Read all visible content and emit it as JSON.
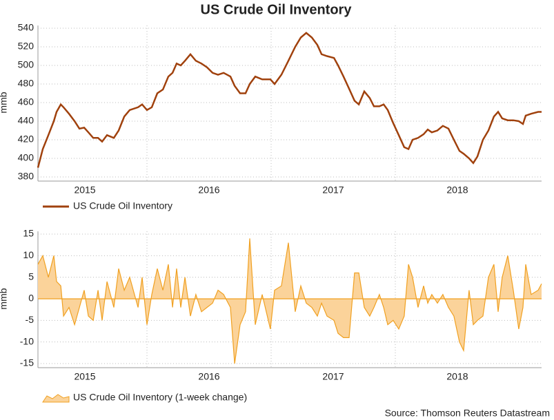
{
  "title": "US Crude Oil Inventory",
  "source": "Source: Thomson Reuters Datastream",
  "chart_data": [
    {
      "type": "line",
      "ylabel": "mmb",
      "x": [
        2015.122,
        2015.161,
        2015.206,
        2015.25,
        2015.272,
        2015.306,
        2015.328,
        2015.372,
        2015.417,
        2015.456,
        2015.494,
        2015.528,
        2015.567,
        2015.606,
        2015.639,
        2015.678,
        2015.733,
        2015.772,
        2015.817,
        2015.861,
        2015.928,
        2015.961,
        2016.0,
        2016.039,
        2016.083,
        2016.128,
        2016.172,
        2016.206,
        2016.239,
        2016.272,
        2016.306,
        2016.35,
        2016.394,
        2016.439,
        2016.483,
        2016.528,
        2016.572,
        2016.617,
        2016.672,
        2016.706,
        2016.75,
        2016.794,
        2016.828,
        2016.872,
        2016.928,
        2016.994,
        2017.028,
        2017.083,
        2017.139,
        2017.194,
        2017.239,
        2017.283,
        2017.328,
        2017.372,
        2017.406,
        2017.45,
        2017.506,
        2017.539,
        2017.583,
        2017.628,
        2017.672,
        2017.706,
        2017.75,
        2017.794,
        2017.828,
        2017.872,
        2017.906,
        2017.939,
        2017.983,
        2018.028,
        2018.072,
        2018.106,
        2018.139,
        2018.183,
        2018.228,
        2018.261,
        2018.294,
        2018.339,
        2018.383,
        2018.428,
        2018.472,
        2018.517,
        2018.55,
        2018.594,
        2018.628,
        2018.661,
        2018.706,
        2018.75,
        2018.794,
        2018.828,
        2018.861,
        2018.906,
        2018.95,
        2018.994,
        2019.028,
        2019.05,
        2019.094,
        2019.15,
        2019.178
      ],
      "series": [
        {
          "name": "US Crude Oil Inventory",
          "color": "#a0410d",
          "values": [
            390,
            410,
            425,
            440,
            450,
            458,
            455,
            448,
            440,
            432,
            433,
            428,
            422,
            422,
            418,
            425,
            422,
            430,
            445,
            452,
            455,
            458,
            452,
            455,
            470,
            474,
            488,
            492,
            502,
            500,
            505,
            512,
            505,
            502,
            498,
            492,
            490,
            492,
            488,
            478,
            470,
            470,
            480,
            488,
            485,
            485,
            480,
            490,
            505,
            520,
            530,
            535,
            530,
            522,
            512,
            510,
            508,
            500,
            488,
            475,
            462,
            458,
            472,
            465,
            456,
            456,
            458,
            452,
            438,
            425,
            412,
            410,
            420,
            422,
            426,
            431,
            428,
            430,
            435,
            432,
            420,
            408,
            405,
            400,
            395,
            402,
            420,
            430,
            445,
            450,
            443,
            441,
            441,
            440,
            437,
            446,
            448,
            450,
            450
          ]
        }
      ],
      "xlim": [
        2015.122,
        2019.178
      ],
      "xticks": [
        2015,
        2016,
        2017,
        2018
      ],
      "ylim": [
        380,
        540
      ],
      "yticks": [
        380,
        400,
        420,
        440,
        460,
        480,
        500,
        520,
        540
      ],
      "grid": true,
      "legend": "bottom-left"
    },
    {
      "type": "area",
      "ylabel": "mmb",
      "x": [
        2015.122,
        2015.161,
        2015.206,
        2015.25,
        2015.272,
        2015.306,
        2015.328,
        2015.372,
        2015.417,
        2015.456,
        2015.494,
        2015.528,
        2015.567,
        2015.606,
        2015.639,
        2015.678,
        2015.733,
        2015.772,
        2015.817,
        2015.861,
        2015.928,
        2015.961,
        2016.0,
        2016.039,
        2016.083,
        2016.128,
        2016.172,
        2016.206,
        2016.239,
        2016.272,
        2016.306,
        2016.35,
        2016.394,
        2016.439,
        2016.483,
        2016.528,
        2016.572,
        2016.617,
        2016.672,
        2016.706,
        2016.75,
        2016.794,
        2016.828,
        2016.872,
        2016.928,
        2016.994,
        2017.028,
        2017.083,
        2017.139,
        2017.194,
        2017.239,
        2017.283,
        2017.328,
        2017.372,
        2017.406,
        2017.45,
        2017.506,
        2017.539,
        2017.583,
        2017.628,
        2017.672,
        2017.706,
        2017.75,
        2017.794,
        2017.828,
        2017.872,
        2017.906,
        2017.939,
        2017.983,
        2018.028,
        2018.072,
        2018.106,
        2018.139,
        2018.183,
        2018.228,
        2018.261,
        2018.294,
        2018.339,
        2018.383,
        2018.428,
        2018.472,
        2018.517,
        2018.55,
        2018.594,
        2018.628,
        2018.661,
        2018.706,
        2018.75,
        2018.794,
        2018.828,
        2018.861,
        2018.906,
        2018.95,
        2018.994,
        2019.028,
        2019.05,
        2019.094,
        2019.15,
        2019.178
      ],
      "series": [
        {
          "name": "US Crude Oil Inventory (1-week change)",
          "color": "#f0a020",
          "fill": "#fbd39a",
          "values": [
            8,
            10,
            5,
            10,
            4,
            3,
            -4,
            -2,
            -6,
            -2,
            2,
            -4,
            -5,
            2,
            -5,
            4,
            -2,
            7,
            2,
            5,
            -2,
            5,
            -6,
            1,
            7,
            2,
            8,
            -2,
            7,
            -2,
            5,
            -4,
            1,
            -3,
            -2,
            -1,
            2,
            1,
            -2,
            -15,
            -6,
            -3,
            14,
            -6,
            1,
            -7,
            2,
            3,
            13,
            -3,
            3,
            -1,
            -2,
            -4,
            -1,
            -4,
            -5,
            -8,
            -9,
            -9,
            6,
            6,
            -2,
            -4,
            -2,
            1,
            -2,
            -6,
            -5,
            -7,
            -4,
            8,
            5,
            -2,
            3,
            -1,
            1,
            -1,
            1,
            -2,
            -4,
            -10,
            -12,
            2,
            -6,
            -5,
            -4,
            5,
            8,
            -3,
            5,
            10,
            2,
            -7,
            -2,
            8,
            1,
            2,
            3.5
          ]
        }
      ],
      "xlim": [
        2015.122,
        2019.178
      ],
      "xticks": [
        2015,
        2016,
        2017,
        2018
      ],
      "ylim": [
        -15,
        15
      ],
      "yticks": [
        -15,
        -10,
        -5,
        0,
        5,
        10,
        15
      ],
      "grid": true,
      "legend": "bottom-left"
    }
  ]
}
